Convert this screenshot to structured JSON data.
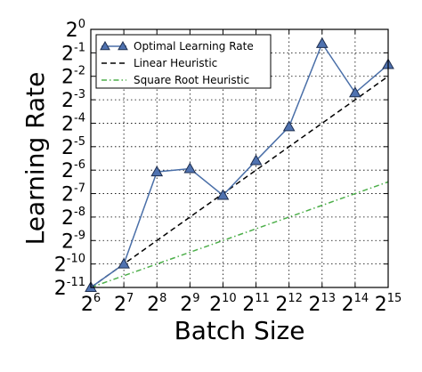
{
  "chart_data": {
    "type": "line",
    "title": "",
    "xlabel": "Batch Size",
    "ylabel": "Learning Rate",
    "x_scale": "log2",
    "y_scale": "log2",
    "xlim": [
      64,
      32768
    ],
    "ylim": [
      0.00048828125,
      1
    ],
    "grid": true,
    "legend_position": "top-left",
    "x_ticks": [
      {
        "base": "2",
        "exp": "6"
      },
      {
        "base": "2",
        "exp": "7"
      },
      {
        "base": "2",
        "exp": "8"
      },
      {
        "base": "2",
        "exp": "9"
      },
      {
        "base": "2",
        "exp": "10"
      },
      {
        "base": "2",
        "exp": "11"
      },
      {
        "base": "2",
        "exp": "12"
      },
      {
        "base": "2",
        "exp": "13"
      },
      {
        "base": "2",
        "exp": "14"
      },
      {
        "base": "2",
        "exp": "15"
      }
    ],
    "y_ticks": [
      {
        "base": "2",
        "exp": "-11"
      },
      {
        "base": "2",
        "exp": "-10"
      },
      {
        "base": "2",
        "exp": "-9"
      },
      {
        "base": "2",
        "exp": "-8"
      },
      {
        "base": "2",
        "exp": "-7"
      },
      {
        "base": "2",
        "exp": "-6"
      },
      {
        "base": "2",
        "exp": "-5"
      },
      {
        "base": "2",
        "exp": "-4"
      },
      {
        "base": "2",
        "exp": "-3"
      },
      {
        "base": "2",
        "exp": "-2"
      },
      {
        "base": "2",
        "exp": "-1"
      },
      {
        "base": "2",
        "exp": "0"
      }
    ],
    "series": [
      {
        "name": "Optimal Learning Rate",
        "style": "solid-triangle",
        "color": "#4a6fa8",
        "marker_fill": "#4f72b0",
        "points": [
          {
            "x": 64,
            "y": 0.00048828125
          },
          {
            "x": 128,
            "y": 0.0009765625
          },
          {
            "x": 256,
            "y": 0.0148651
          },
          {
            "x": 512,
            "y": 0.0163365
          },
          {
            "x": 1024,
            "y": 0.0074325
          },
          {
            "x": 2048,
            "y": 0.0206652
          },
          {
            "x": 4096,
            "y": 0.0563282
          },
          {
            "x": 8192,
            "y": 0.6597539
          },
          {
            "x": 16384,
            "y": 0.153374
          },
          {
            "x": 32768,
            "y": 0.3535534
          }
        ]
      },
      {
        "name": "Linear Heuristic",
        "style": "dashed",
        "color": "#000000",
        "points": [
          {
            "x": 64,
            "y": 0.00048828125
          },
          {
            "x": 32768,
            "y": 0.25
          }
        ]
      },
      {
        "name": "Square Root Heuristic",
        "style": "dashdot",
        "color": "#4daf4a",
        "points": [
          {
            "x": 64,
            "y": 0.00048828125
          },
          {
            "x": 32768,
            "y": 0.0110485
          }
        ]
      }
    ]
  }
}
